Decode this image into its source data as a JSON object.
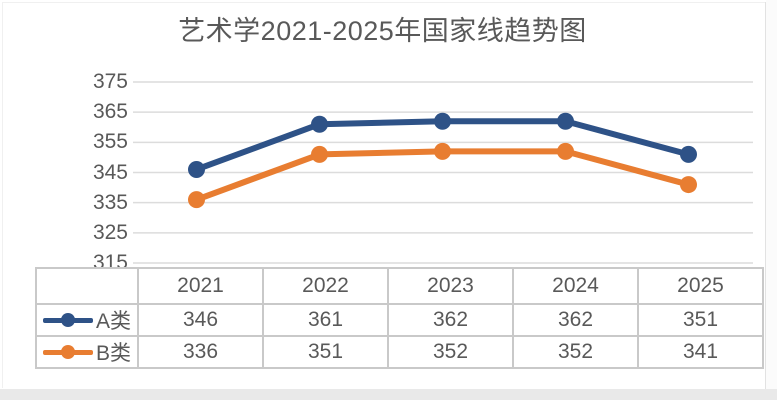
{
  "chart_data": {
    "type": "line",
    "title": "艺术学2021-2025年国家线趋势图",
    "categories": [
      "2021",
      "2022",
      "2023",
      "2024",
      "2025"
    ],
    "series": [
      {
        "name": "A类",
        "color": "#2e5287",
        "values": [
          346,
          361,
          362,
          362,
          351
        ]
      },
      {
        "name": "B类",
        "color": "#e87d31",
        "values": [
          336,
          351,
          352,
          352,
          341
        ]
      }
    ],
    "ylim": [
      315,
      375
    ],
    "yticks": [
      375,
      365,
      355,
      345,
      335,
      325,
      315
    ],
    "grid": true,
    "legend_position": "data-table-left",
    "colors": {
      "title_text": "#595959",
      "axis_text": "#595959",
      "gridline": "#dcdcdc",
      "table_border": "#c9c9c9"
    }
  }
}
